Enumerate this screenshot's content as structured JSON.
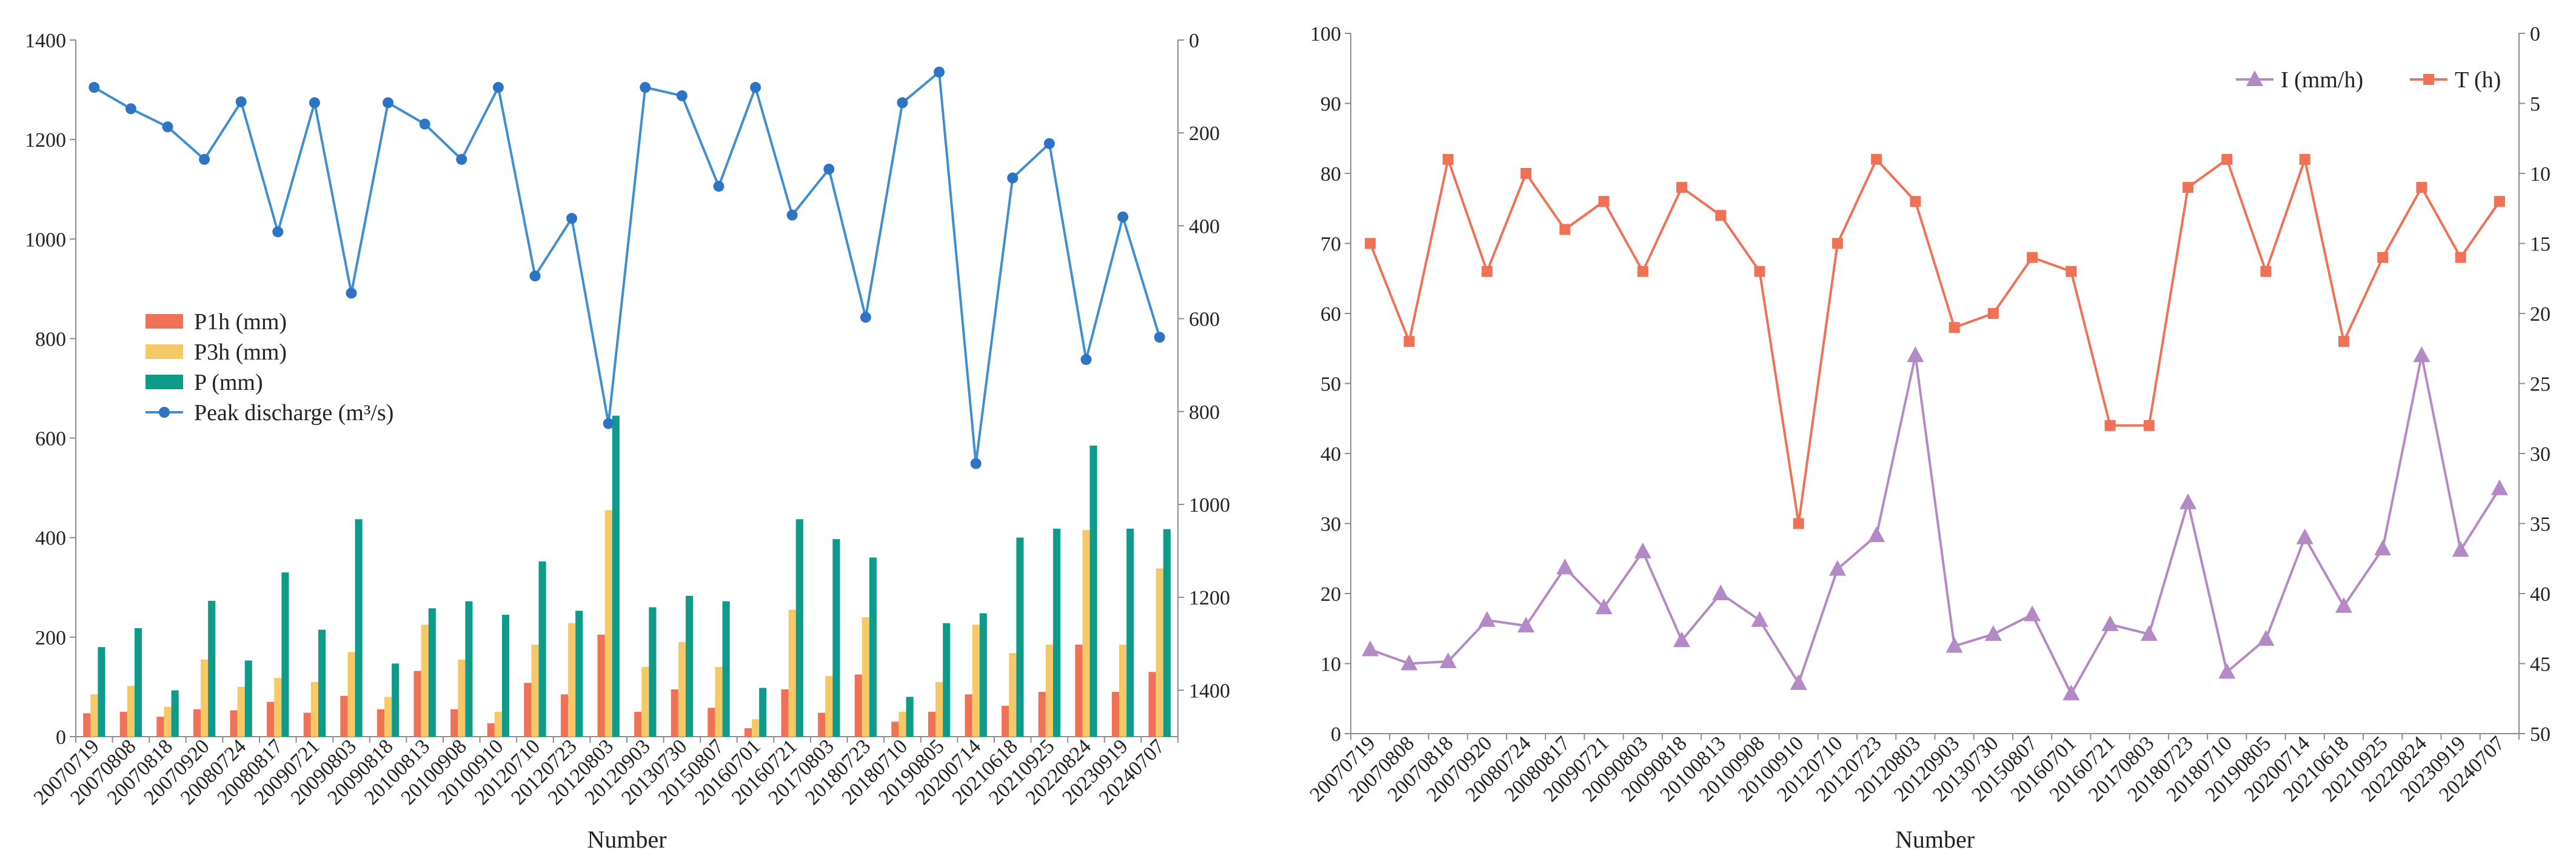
{
  "chart_data": [
    {
      "type": "bar+line",
      "xlabel": "Number",
      "categories": [
        "20070719",
        "20070808",
        "20070818",
        "20070920",
        "20080724",
        "20080817",
        "20090721",
        "20090803",
        "20090818",
        "20100813",
        "20100908",
        "20100910",
        "20120710",
        "20120723",
        "20120803",
        "20120903",
        "20130730",
        "20150807",
        "20160701",
        "20160721",
        "20170803",
        "20180723",
        "20180710",
        "20190805",
        "20200714",
        "20210618",
        "20210925",
        "20220824",
        "20230919",
        "20240707"
      ],
      "left_axis": {
        "ylim": [
          0,
          1400
        ],
        "ticks": [
          0,
          200,
          400,
          600,
          800,
          1000,
          1200,
          1400
        ]
      },
      "right_axis": {
        "ylim": [
          0,
          1500
        ],
        "inverted": true,
        "ticks": [
          0,
          200,
          400,
          600,
          800,
          1000,
          1200,
          1400
        ]
      },
      "bar_series": [
        {
          "name": "P1h (mm)",
          "color": "#ef7256",
          "values": [
            47,
            50,
            40,
            55,
            53,
            70,
            48,
            82,
            55,
            132,
            55,
            27,
            108,
            85,
            205,
            50,
            95,
            58,
            17,
            95,
            48,
            125,
            30,
            50,
            85,
            62,
            90,
            185,
            90,
            130
          ]
        },
        {
          "name": "P3h (mm)",
          "color": "#f6c866",
          "values": [
            85,
            102,
            60,
            155,
            100,
            118,
            110,
            170,
            80,
            225,
            155,
            50,
            185,
            228,
            455,
            140,
            190,
            140,
            35,
            255,
            122,
            240,
            50,
            110,
            225,
            168,
            185,
            415,
            185,
            338
          ]
        },
        {
          "name": "P (mm)",
          "color": "#0f9b8a",
          "values": [
            180,
            218,
            93,
            273,
            153,
            330,
            215,
            437,
            147,
            258,
            272,
            245,
            352,
            253,
            645,
            260,
            283,
            272,
            98,
            437,
            397,
            360,
            80,
            228,
            248,
            400,
            418,
            585,
            418,
            417
          ]
        }
      ],
      "line_series": [
        {
          "name": "Peak discharge (m³/s)",
          "color": "#3f8fd0",
          "axis": "right",
          "values": [
            102,
            148,
            187,
            257,
            133,
            413,
            135,
            545,
            135,
            181,
            257,
            102,
            508,
            384,
            826,
            102,
            120,
            315,
            102,
            377,
            278,
            597,
            135,
            69,
            912,
            297,
            223,
            688,
            381,
            640
          ]
        }
      ],
      "legend": {
        "placement": "center-left"
      }
    },
    {
      "type": "line",
      "xlabel": "Number",
      "categories": [
        "20070719",
        "20070808",
        "20070818",
        "20070920",
        "20080724",
        "20080817",
        "20090721",
        "20090803",
        "20090818",
        "20100813",
        "20100908",
        "20100910",
        "20120710",
        "20120723",
        "20120803",
        "20120903",
        "20130730",
        "20150807",
        "20160701",
        "20160721",
        "20170803",
        "20180723",
        "20180710",
        "20190805",
        "20200714",
        "20210618",
        "20210925",
        "20220824",
        "20230919",
        "20240707"
      ],
      "left_axis": {
        "ylim": [
          0,
          100
        ],
        "ticks": [
          0,
          10,
          20,
          30,
          40,
          50,
          60,
          70,
          80,
          90,
          100
        ]
      },
      "right_axis": {
        "ylim": [
          0,
          50
        ],
        "inverted": true,
        "ticks": [
          0,
          5,
          10,
          15,
          20,
          25,
          30,
          35,
          40,
          45,
          50
        ]
      },
      "series": [
        {
          "name": "I (mm/h)",
          "color": "#b48ac6",
          "marker": "triangle",
          "axis": "left",
          "values": [
            12,
            10,
            10.3,
            16.2,
            15.4,
            23.7,
            18,
            26,
            13.3,
            20,
            16.2,
            7.2,
            23.5,
            28.3,
            54,
            12.5,
            14.2,
            17,
            5.7,
            15.6,
            14.2,
            33,
            8.8,
            13.5,
            28,
            18.2,
            26.4,
            54,
            26.2,
            35
          ]
        },
        {
          "name": "T (h)",
          "color": "#ef7256",
          "marker": "square",
          "axis": "right",
          "values": [
            15,
            22,
            9,
            17,
            10,
            14,
            12,
            17,
            11,
            13,
            17,
            35,
            15,
            9,
            12,
            21,
            20,
            16,
            17,
            28,
            28,
            11,
            9,
            17,
            9,
            22,
            16,
            11,
            16,
            12
          ]
        }
      ],
      "legend": {
        "placement": "top-right"
      }
    }
  ]
}
